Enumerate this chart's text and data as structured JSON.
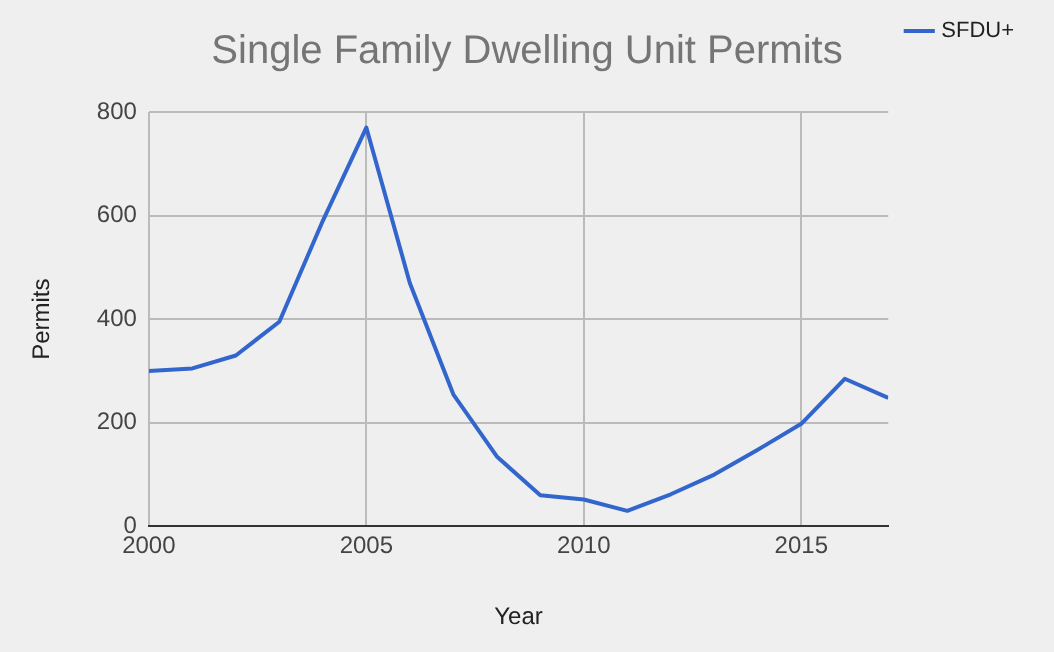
{
  "chart_data": {
    "type": "line",
    "title": "Single Family Dwelling Unit Permits",
    "xlabel": "Year",
    "ylabel": "Permits",
    "x": [
      2000,
      2001,
      2002,
      2003,
      2004,
      2005,
      2006,
      2007,
      2008,
      2009,
      2010,
      2011,
      2012,
      2013,
      2014,
      2015,
      2016,
      2017
    ],
    "series": [
      {
        "name": "SFDU+",
        "color": "#3366cc",
        "values": [
          300,
          305,
          330,
          395,
          590,
          770,
          470,
          255,
          135,
          60,
          52,
          30,
          62,
          100,
          148,
          198,
          285,
          248
        ]
      }
    ],
    "xlim": [
      2000,
      2017
    ],
    "xticks": [
      2000,
      2005,
      2010,
      2015
    ],
    "ylim": [
      0,
      800
    ],
    "yticks": [
      0,
      200,
      400,
      600,
      800
    ],
    "grid": true,
    "legend": "top right",
    "marker": "none",
    "line_style": "solid"
  }
}
